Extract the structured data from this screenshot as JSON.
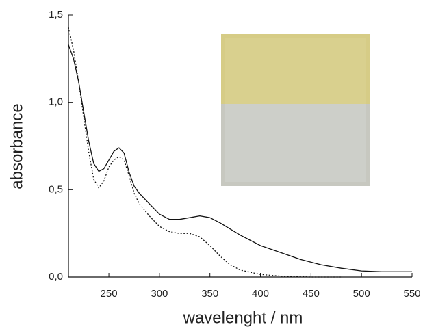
{
  "chart_data": {
    "type": "line",
    "x_label": "wavelenght / nm",
    "y_label": "absorbance",
    "xlim": [
      210,
      550
    ],
    "ylim": [
      0,
      1.5
    ],
    "xticks": [
      250,
      300,
      350,
      400,
      450,
      500,
      550
    ],
    "yticks": [
      {
        "value": 0,
        "label": "0,0"
      },
      {
        "value": 0.5,
        "label": "0,5"
      },
      {
        "value": 1,
        "label": "1,0"
      },
      {
        "value": 1.5,
        "label": "1,5"
      }
    ],
    "series": [
      {
        "color": "#111111",
        "linestyle": "solid",
        "x": [
          210,
          215,
          220,
          225,
          230,
          235,
          240,
          245,
          250,
          255,
          260,
          265,
          270,
          275,
          280,
          290,
          300,
          310,
          320,
          330,
          340,
          350,
          360,
          380,
          400,
          420,
          440,
          460,
          480,
          500,
          520,
          550
        ],
        "values": [
          1.33,
          1.25,
          1.12,
          0.95,
          0.78,
          0.65,
          0.605,
          0.62,
          0.67,
          0.72,
          0.74,
          0.71,
          0.6,
          0.52,
          0.48,
          0.42,
          0.36,
          0.33,
          0.33,
          0.34,
          0.35,
          0.34,
          0.31,
          0.24,
          0.18,
          0.14,
          0.1,
          0.07,
          0.05,
          0.035,
          0.03,
          0.03
        ]
      },
      {
        "color": "#111111",
        "linestyle": "dotted",
        "x": [
          210,
          215,
          220,
          225,
          230,
          235,
          240,
          245,
          250,
          255,
          260,
          265,
          270,
          275,
          280,
          290,
          300,
          310,
          320,
          330,
          340,
          350,
          360,
          370,
          380,
          400,
          420,
          450,
          480
        ],
        "values": [
          1.43,
          1.3,
          1.12,
          0.92,
          0.72,
          0.56,
          0.51,
          0.55,
          0.63,
          0.67,
          0.69,
          0.67,
          0.58,
          0.48,
          0.42,
          0.35,
          0.29,
          0.26,
          0.25,
          0.25,
          0.23,
          0.18,
          0.12,
          0.07,
          0.04,
          0.015,
          0.005,
          0,
          0
        ]
      }
    ]
  }
}
